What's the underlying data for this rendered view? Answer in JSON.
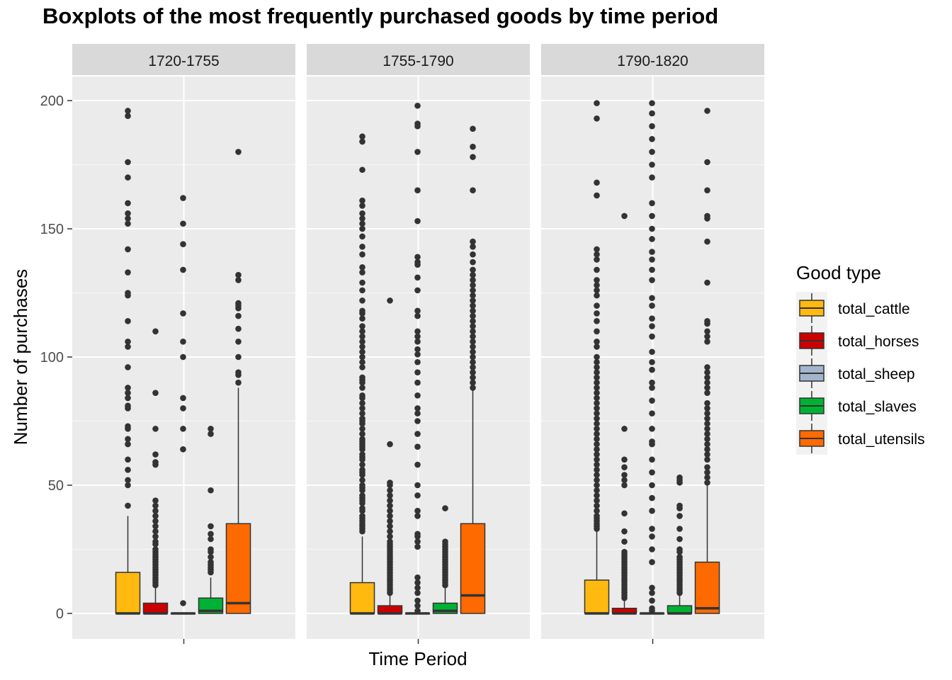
{
  "chart_data": {
    "type": "boxplot",
    "title": "Boxplots of the most frequently purchased goods by time period",
    "xlabel": "Time Period",
    "ylabel": "Number of purchases",
    "ylim": [
      -10,
      210
    ],
    "yticks": [
      0,
      50,
      100,
      150,
      200
    ],
    "legend": {
      "title": "Good type",
      "position": "right",
      "entries": [
        {
          "name": "total_cattle",
          "color": "#FFB90F"
        },
        {
          "name": "total_horses",
          "color": "#CD0000"
        },
        {
          "name": "total_sheep",
          "color": "#A2B5CD"
        },
        {
          "name": "total_slaves",
          "color": "#00B233"
        },
        {
          "name": "total_utensils",
          "color": "#FF6A00"
        }
      ]
    },
    "panels": [
      {
        "label": "1720-1755",
        "boxes": [
          {
            "good": "total_cattle",
            "q1": 0,
            "median": 0,
            "q3": 16,
            "lower": 0,
            "upper": 38,
            "outliers": [
              42,
              50,
              52,
              56,
              60,
              66,
              68,
              72,
              73,
              80,
              81,
              84,
              86,
              88,
              96,
              104,
              106,
              114,
              124,
              125,
              133,
              142,
              152,
              154,
              156,
              160,
              170,
              176,
              194,
              196
            ]
          },
          {
            "good": "total_horses",
            "q1": 0,
            "median": 0,
            "q3": 4,
            "lower": 0,
            "upper": 10,
            "outliers": [
              11,
              12,
              13,
              14,
              15,
              16,
              17,
              18,
              19,
              20,
              21,
              22,
              23,
              24,
              25,
              27,
              28,
              30,
              32,
              34,
              36,
              38,
              40,
              42,
              44,
              58,
              59,
              62,
              72,
              86,
              110
            ]
          },
          {
            "good": "total_sheep",
            "q1": 0,
            "median": 0,
            "q3": 0,
            "lower": 0,
            "upper": 0,
            "outliers": [
              4,
              64,
              72,
              80,
              84,
              100,
              106,
              117,
              134,
              144,
              152,
              162
            ]
          },
          {
            "good": "total_slaves",
            "q1": 0,
            "median": 1,
            "q3": 6,
            "lower": 0,
            "upper": 14,
            "outliers": [
              16,
              17,
              18,
              19,
              20,
              22,
              24,
              25,
              29,
              31,
              34,
              48,
              70,
              72
            ]
          },
          {
            "good": "total_utensils",
            "q1": 0,
            "median": 4,
            "q3": 35,
            "lower": 0,
            "upper": 88,
            "outliers": [
              90,
              93,
              94,
              100,
              106,
              111,
              116,
              119,
              120,
              121,
              130,
              132,
              180
            ]
          }
        ]
      },
      {
        "label": "1755-1790",
        "boxes": [
          {
            "good": "total_cattle",
            "q1": 0,
            "median": 0,
            "q3": 12,
            "lower": 0,
            "upper": 30,
            "outliers": [
              32,
              33,
              34,
              35,
              36,
              37,
              38,
              40,
              41,
              43,
              44,
              45,
              46,
              48,
              49,
              50,
              52,
              54,
              55,
              56,
              58,
              60,
              61,
              62,
              64,
              65,
              66,
              67,
              68,
              70,
              72,
              74,
              75,
              76,
              78,
              80,
              82,
              84,
              85,
              88,
              90,
              91,
              92,
              96,
              98,
              100,
              102,
              104,
              106,
              108,
              110,
              112,
              115,
              117,
              118,
              122,
              126,
              129,
              133,
              135,
              140,
              143,
              147,
              150,
              152,
              154,
              156,
              159,
              161,
              173,
              184,
              186
            ]
          },
          {
            "good": "total_horses",
            "q1": 0,
            "median": 0,
            "q3": 3,
            "lower": 0,
            "upper": 7,
            "outliers": [
              8,
              9,
              10,
              11,
              12,
              13,
              14,
              15,
              16,
              17,
              18,
              19,
              20,
              21,
              22,
              23,
              24,
              25,
              26,
              27,
              28,
              30,
              32,
              34,
              36,
              38,
              40,
              42,
              44,
              46,
              48,
              50,
              51,
              66,
              122
            ]
          },
          {
            "good": "total_sheep",
            "q1": 0,
            "median": 0,
            "q3": 0,
            "lower": 0,
            "upper": 0,
            "outliers": [
              1,
              3,
              5,
              8,
              10,
              12,
              14,
              26,
              28,
              30,
              31,
              38,
              40,
              46,
              50,
              58,
              65,
              70,
              75,
              78,
              80,
              85,
              90,
              94,
              98,
              101,
              103,
              106,
              108,
              110,
              116,
              118,
              126,
              131,
              136,
              137,
              139,
              153,
              165,
              180,
              190,
              191,
              198
            ]
          },
          {
            "good": "total_slaves",
            "q1": 0,
            "median": 1,
            "q3": 4,
            "lower": 0,
            "upper": 10,
            "outliers": [
              11,
              12,
              13,
              14,
              15,
              16,
              17,
              18,
              19,
              20,
              21,
              22,
              23,
              24,
              25,
              26,
              27,
              28,
              41
            ]
          },
          {
            "good": "total_utensils",
            "q1": 0,
            "median": 7,
            "q3": 35,
            "lower": 0,
            "upper": 87,
            "outliers": [
              88,
              90,
              92,
              94,
              96,
              98,
              100,
              102,
              104,
              106,
              108,
              110,
              112,
              114,
              116,
              118,
              120,
              122,
              124,
              126,
              128,
              130,
              132,
              134,
              137,
              140,
              143,
              145,
              165,
              178,
              182,
              189
            ]
          }
        ]
      },
      {
        "label": "1790-1820",
        "boxes": [
          {
            "good": "total_cattle",
            "q1": 0,
            "median": 0,
            "q3": 13,
            "lower": 0,
            "upper": 32,
            "outliers": [
              33,
              34,
              35,
              36,
              37,
              38,
              40,
              42,
              44,
              46,
              48,
              50,
              52,
              54,
              56,
              58,
              60,
              62,
              64,
              66,
              68,
              70,
              72,
              74,
              76,
              78,
              80,
              82,
              84,
              86,
              88,
              90,
              92,
              94,
              96,
              98,
              100,
              104,
              106,
              110,
              114,
              117,
              120,
              124,
              126,
              128,
              130,
              134,
              138,
              140,
              142,
              163,
              168,
              193,
              199
            ]
          },
          {
            "good": "total_horses",
            "q1": 0,
            "median": 0,
            "q3": 2,
            "lower": 0,
            "upper": 5,
            "outliers": [
              6,
              7,
              8,
              9,
              10,
              11,
              12,
              13,
              14,
              15,
              16,
              17,
              18,
              19,
              20,
              21,
              22,
              23,
              24,
              28,
              32,
              39,
              50,
              52,
              54,
              57,
              60,
              72,
              155
            ]
          },
          {
            "good": "total_sheep",
            "q1": 0,
            "median": 0,
            "q3": 0,
            "lower": 0,
            "upper": 0,
            "outliers": [
              1,
              2,
              5,
              8,
              10,
              20,
              25,
              30,
              33,
              40,
              45,
              50,
              55,
              60,
              66,
              67,
              72,
              78,
              83,
              88,
              90,
              95,
              98,
              102,
              108,
              112,
              115,
              120,
              123,
              130,
              134,
              138,
              141,
              146,
              150,
              155,
              160,
              170,
              175,
              180,
              185,
              190,
              195,
              199
            ]
          },
          {
            "good": "total_slaves",
            "q1": 0,
            "median": 0,
            "q3": 3,
            "lower": 0,
            "upper": 7,
            "outliers": [
              8,
              9,
              10,
              11,
              12,
              13,
              14,
              15,
              16,
              17,
              18,
              19,
              20,
              21,
              22,
              24,
              25,
              29,
              33,
              38,
              41,
              42,
              51,
              52,
              53
            ]
          },
          {
            "good": "total_utensils",
            "q1": 0,
            "median": 2,
            "q3": 20,
            "lower": 0,
            "upper": 50,
            "outliers": [
              51,
              53,
              55,
              57,
              60,
              62,
              64,
              66,
              68,
              70,
              72,
              74,
              76,
              78,
              80,
              82,
              86,
              88,
              90,
              92,
              94,
              96,
              106,
              108,
              110,
              113,
              114,
              129,
              145,
              154,
              155,
              165,
              176,
              196
            ]
          }
        ]
      }
    ]
  }
}
